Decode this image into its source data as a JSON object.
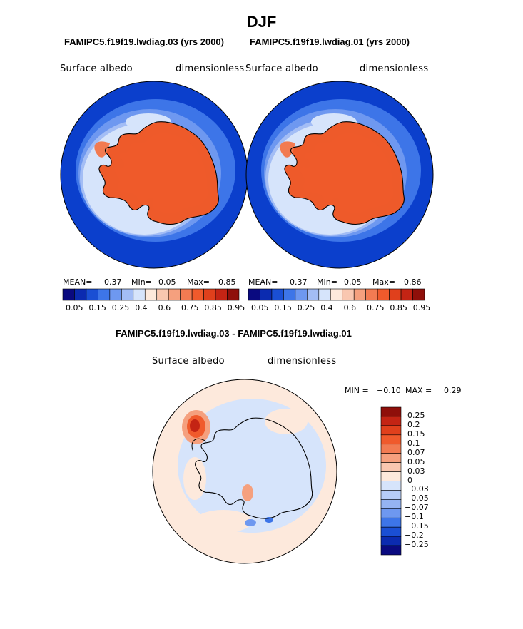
{
  "page": {
    "title": "DJF"
  },
  "panels": [
    {
      "run_title": "FAMIPC5.f19f19.lwdiag.03 (yrs 2000)",
      "variable": "Surface albedo",
      "units": "dimensionless",
      "stats": {
        "mean_label": "MEAN=",
        "mean": "0.37",
        "min_label": "MIn=",
        "min": "0.05",
        "max_label": "Max=",
        "max": "0.85"
      }
    },
    {
      "run_title": "FAMIPC5.f19f19.lwdiag.01 (yrs 2000)",
      "variable": "Surface albedo",
      "units": "dimensionless",
      "stats": {
        "mean_label": "MEAN=",
        "mean": "0.37",
        "min_label": "MIn=",
        "min": "0.05",
        "max_label": "Max=",
        "max": "0.86"
      }
    }
  ],
  "diff_panel": {
    "title": "FAMIPC5.f19f19.lwdiag.03 - FAMIPC5.f19f19.lwdiag.01",
    "variable": "Surface albedo",
    "units": "dimensionless",
    "min_label": "MIN =",
    "min": "−0.10",
    "max_label": "MAX =",
    "max": "0.29"
  },
  "chart_data": [
    {
      "type": "heatmap",
      "projection": "south-polar-stereographic",
      "title": "FAMIPC5.f19f19.lwdiag.03 (yrs 2000)",
      "field": "Surface albedo",
      "units": "dimensionless",
      "mean": 0.37,
      "min": 0.05,
      "max": 0.85,
      "colorbar_tick_labels": [
        "0.05",
        "0.15",
        "0.25",
        "0.4",
        "0.6",
        "0.75",
        "0.85",
        "0.95"
      ]
    },
    {
      "type": "heatmap",
      "projection": "south-polar-stereographic",
      "title": "FAMIPC5.f19f19.lwdiag.01 (yrs 2000)",
      "field": "Surface albedo",
      "units": "dimensionless",
      "mean": 0.37,
      "min": 0.05,
      "max": 0.86,
      "colorbar_tick_labels": [
        "0.05",
        "0.15",
        "0.25",
        "0.4",
        "0.6",
        "0.75",
        "0.85",
        "0.95"
      ]
    },
    {
      "type": "heatmap",
      "projection": "south-polar-stereographic",
      "title": "FAMIPC5.f19f19.lwdiag.03 - FAMIPC5.f19f19.lwdiag.01",
      "field": "Surface albedo",
      "units": "dimensionless",
      "min": -0.1,
      "max": 0.29,
      "colorbar_tick_labels": [
        "0.25",
        "0.2",
        "0.15",
        "0.1",
        "0.07",
        "0.05",
        "0.03",
        "0",
        "−0.03",
        "−0.05",
        "−0.07",
        "−0.1",
        "−0.15",
        "−0.2",
        "−0.25"
      ]
    }
  ],
  "colors": {
    "abs_bar": [
      "#0a0a80",
      "#0b2bb0",
      "#1a4fd4",
      "#3d75e8",
      "#6e98f0",
      "#a3bdf5",
      "#d6e4fb",
      "#fde9dc",
      "#f9c7b0",
      "#f5a07e",
      "#f27b52",
      "#f05a2c",
      "#e0401c",
      "#c42414",
      "#8f0f0a"
    ],
    "diff_bar": [
      "#8f0f0a",
      "#c42414",
      "#e0401c",
      "#f05a2c",
      "#f27b52",
      "#f5a07e",
      "#f9c7b0",
      "#fde9dc",
      "#d6e4fb",
      "#b6cdf7",
      "#95b4f2",
      "#6e98f0",
      "#3d75e8",
      "#1a4fd4",
      "#0b2bb0",
      "#0a0a80"
    ],
    "ocean": "#0b3fcc",
    "ice": "#ee5a2a",
    "diff_bg": "#fde9dc",
    "diff_neg": "#d6e4fb"
  }
}
